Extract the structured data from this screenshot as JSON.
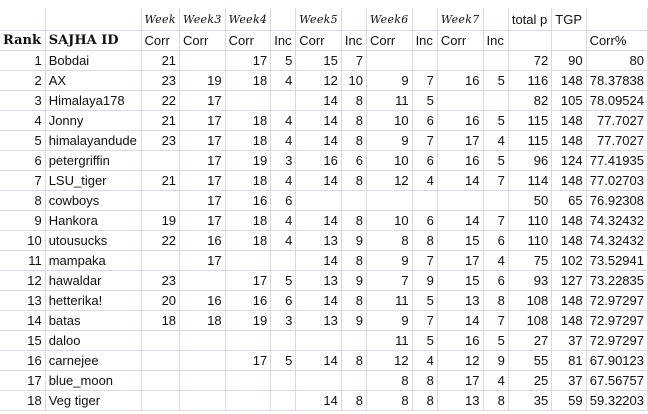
{
  "header_row1": [
    "",
    "",
    "Week",
    "Week3",
    "Week4",
    "",
    "Week5",
    "",
    "Week6",
    "",
    "Week7",
    "",
    "total p",
    "TGP",
    ""
  ],
  "header_row2": [
    "Rank",
    "SAJHA ID",
    "Corr",
    "Corr",
    "Corr",
    "Inc",
    "Corr",
    "Inc",
    "Corr",
    "Inc",
    "Corr",
    "Inc",
    "",
    "",
    "Corr%"
  ],
  "rows": [
    [
      "1",
      "Bobdai",
      "21",
      "",
      "17",
      "5",
      "15",
      "7",
      "",
      "",
      "",
      "",
      "72",
      "90",
      "80"
    ],
    [
      "2",
      "AX",
      "23",
      "19",
      "18",
      "4",
      "12",
      "10",
      "9",
      "7",
      "16",
      "5",
      "116",
      "148",
      "78.37838"
    ],
    [
      "3",
      "Himalaya178",
      "22",
      "17",
      "",
      "",
      "14",
      "8",
      "11",
      "5",
      "",
      "",
      "82",
      "105",
      "78.09524"
    ],
    [
      "4",
      "Jonny",
      "21",
      "17",
      "18",
      "4",
      "14",
      "8",
      "10",
      "6",
      "16",
      "5",
      "115",
      "148",
      "77.7027"
    ],
    [
      "5",
      "himalayandude",
      "23",
      "17",
      "18",
      "4",
      "14",
      "8",
      "9",
      "7",
      "17",
      "4",
      "115",
      "148",
      "77.7027"
    ],
    [
      "6",
      "petergriffin",
      "",
      "17",
      "19",
      "3",
      "16",
      "6",
      "10",
      "6",
      "16",
      "5",
      "96",
      "124",
      "77.41935"
    ],
    [
      "7",
      "LSU_tiger",
      "21",
      "17",
      "18",
      "4",
      "14",
      "8",
      "12",
      "4",
      "14",
      "7",
      "114",
      "148",
      "77.02703"
    ],
    [
      "8",
      "cowboys",
      "",
      "17",
      "16",
      "6",
      "",
      "",
      "",
      "",
      "",
      "",
      "50",
      "65",
      "76.92308"
    ],
    [
      "9",
      "Hankora",
      "19",
      "17",
      "18",
      "4",
      "14",
      "8",
      "10",
      "6",
      "14",
      "7",
      "110",
      "148",
      "74.32432"
    ],
    [
      "10",
      "utousucks",
      "22",
      "16",
      "18",
      "4",
      "13",
      "9",
      "8",
      "8",
      "15",
      "6",
      "110",
      "148",
      "74.32432"
    ],
    [
      "11",
      "mampaka",
      "",
      "17",
      "",
      "",
      "14",
      "8",
      "9",
      "7",
      "17",
      "4",
      "75",
      "102",
      "73.52941"
    ],
    [
      "12",
      "hawaldar",
      "23",
      "",
      "17",
      "5",
      "13",
      "9",
      "7",
      "9",
      "15",
      "6",
      "93",
      "127",
      "73.22835"
    ],
    [
      "13",
      "hetterika!",
      "20",
      "16",
      "16",
      "6",
      "14",
      "8",
      "11",
      "5",
      "13",
      "8",
      "108",
      "148",
      "72.97297"
    ],
    [
      "14",
      "batas",
      "18",
      "18",
      "19",
      "3",
      "13",
      "9",
      "9",
      "7",
      "14",
      "7",
      "108",
      "148",
      "72.97297"
    ],
    [
      "15",
      "daloo",
      "",
      "",
      "",
      "",
      "",
      "",
      "11",
      "5",
      "16",
      "5",
      "27",
      "37",
      "72.97297"
    ],
    [
      "16",
      "carnejee",
      "",
      "",
      "17",
      "5",
      "14",
      "8",
      "12",
      "4",
      "12",
      "9",
      "55",
      "81",
      "67.90123"
    ],
    [
      "17",
      "blue_moon",
      "",
      "",
      "",
      "",
      "",
      "",
      "8",
      "8",
      "17",
      "4",
      "25",
      "37",
      "67.56757"
    ],
    [
      "18",
      "Veg tiger",
      "",
      "",
      "",
      "",
      "14",
      "8",
      "8",
      "8",
      "13",
      "8",
      "35",
      "59",
      "59.32203"
    ]
  ],
  "colors": {
    "gridline": "#d4dbe6",
    "text": "#111111"
  }
}
